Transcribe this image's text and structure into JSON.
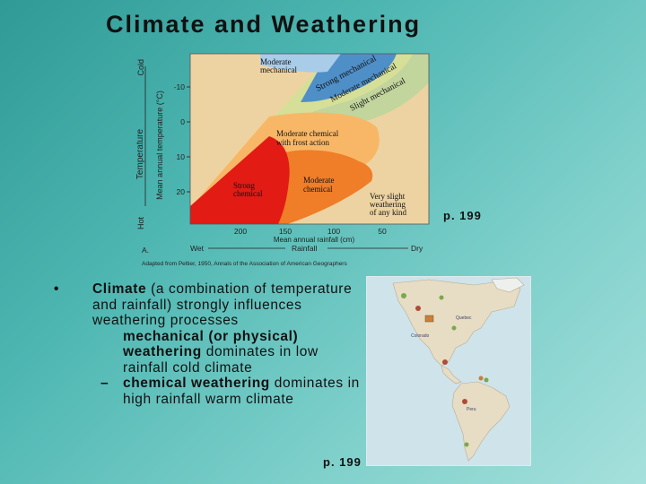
{
  "slide": {
    "title": "Climate and Weathering",
    "diagram_page_ref": "p. 199",
    "map_page_ref": "p. 199"
  },
  "diagram": {
    "regions": [
      {
        "label_lines": [
          "Moderate",
          "mechanical"
        ]
      },
      {
        "label_lines": [
          "Strong mechanical"
        ]
      },
      {
        "label_lines": [
          "Moderate mechanical"
        ]
      },
      {
        "label_lines": [
          "Slight mechanical"
        ]
      },
      {
        "label_lines": [
          "Moderate chemical",
          "with frost action"
        ]
      },
      {
        "label_lines": [
          "Strong",
          "chemical"
        ]
      },
      {
        "label_lines": [
          "Moderate",
          "chemical"
        ]
      },
      {
        "label_lines": [
          "Very slight",
          "weathering",
          "of any kind"
        ]
      }
    ],
    "y_axis": {
      "label_outer": "Temperature",
      "label_inner": "Mean annual temperature (°C)",
      "end_low": "Hot",
      "end_high": "Cold",
      "ticks": [
        "-10",
        "0",
        "10",
        "20"
      ]
    },
    "x_axis": {
      "ticks": [
        "200",
        "150",
        "100",
        "50"
      ],
      "label": "Mean annual rainfall (cm)",
      "end_left": "Wet",
      "end_right": "Dry",
      "label_outer": "Rainfall",
      "corner_mark": "A."
    },
    "source_note": "Adapted from Peltier, 1950, Annals of the Association of American Geographers"
  },
  "bullets": {
    "main_marker": "•",
    "main_bold": "Climate",
    "main_rest": " (a combination of temperature and rainfall) strongly influences weathering processes",
    "sub1_bold": "mechanical (or physical) weathering",
    "sub1_rest": " dominates in low rainfall cold climate",
    "sub2_marker": "–",
    "sub2_bold": "chemical weathering",
    "sub2_rest": " dominates in high rainfall warm climate"
  },
  "map": {
    "labels": [
      "Quebec",
      "Colorado",
      "Peru"
    ],
    "colors": {
      "ocean": "#cfe3ea",
      "land": "#e7dcc4",
      "marker_green": "#7aa84a",
      "marker_red": "#b04a3a",
      "marker_orange": "#c9803a"
    }
  },
  "colors": {
    "strong_chemical": "#e21b14",
    "moderate_chemical": "#f07d28",
    "frost_action": "#f8b767",
    "very_slight": "#edd3a1",
    "slight_mech": "#c2d59d",
    "moderate_mech": "#d6df98",
    "strong_mech": "#4f8fc8",
    "moderate_mech_top": "#a9cce8"
  }
}
